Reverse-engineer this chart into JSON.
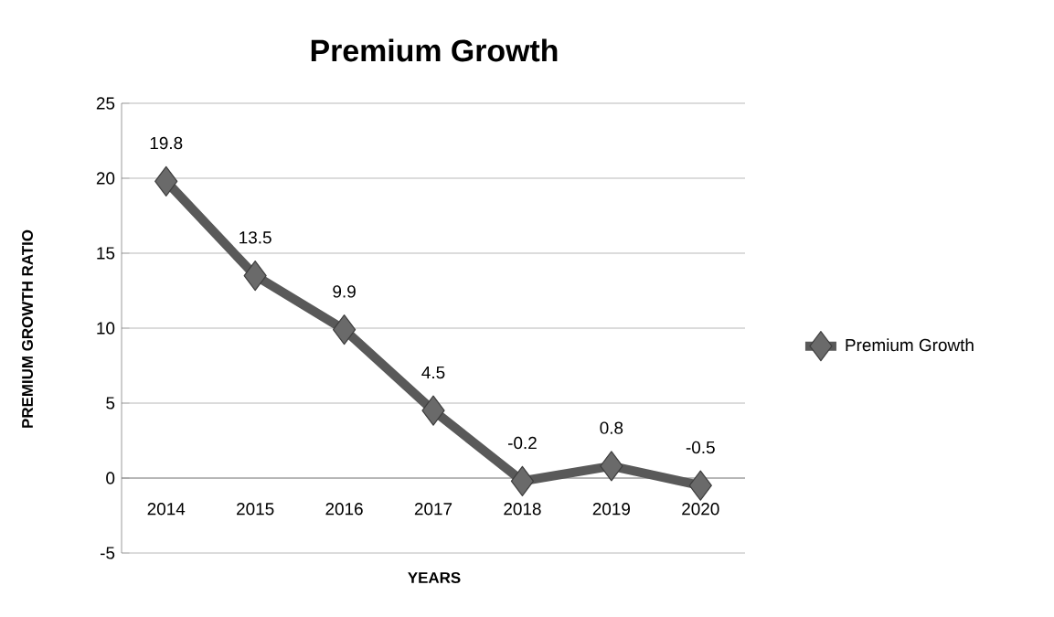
{
  "chart_data": {
    "type": "line",
    "title": "Premium Growth",
    "xlabel": "YEARS",
    "ylabel": "PREMIUM GROWTH RATIO",
    "categories": [
      "2014",
      "2015",
      "2016",
      "2017",
      "2018",
      "2019",
      "2020"
    ],
    "series": [
      {
        "name": "Premium Growth",
        "color": "#595959",
        "values": [
          19.8,
          13.5,
          9.9,
          4.5,
          -0.2,
          0.8,
          -0.5
        ]
      }
    ],
    "ylim": [
      -5,
      25
    ],
    "yticks": [
      -5,
      0,
      5,
      10,
      15,
      20,
      25
    ],
    "grid": "y",
    "legend": "right",
    "marker": "diamond",
    "line_style": "solid",
    "data_labels": true
  }
}
